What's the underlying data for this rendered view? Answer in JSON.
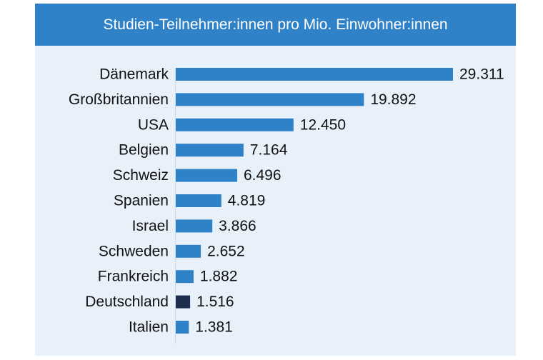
{
  "chart_data": {
    "type": "bar",
    "orientation": "horizontal",
    "title": "Studien-Teilnehmer:innen pro Mio. Einwohner:innen",
    "categories": [
      "Dänemark",
      "Großbritannien",
      "USA",
      "Belgien",
      "Schweiz",
      "Spanien",
      "Israel",
      "Schweden",
      "Frankreich",
      "Deutschland",
      "Italien"
    ],
    "values": [
      29311,
      19892,
      12450,
      7164,
      6496,
      4819,
      3866,
      2652,
      1882,
      1516,
      1381
    ],
    "value_labels": [
      "29.311",
      "19.892",
      "12.450",
      "7.164",
      "6.496",
      "4.819",
      "3.866",
      "2.652",
      "1.882",
      "1.516",
      "1.381"
    ],
    "highlight_category": "Deutschland",
    "xlim": [
      0,
      29311
    ],
    "grid": false,
    "colors": {
      "bar": "#2f82c8",
      "highlight": "#1f2d4e",
      "header": "#2f82c8",
      "background": "#e8f1fa"
    }
  }
}
